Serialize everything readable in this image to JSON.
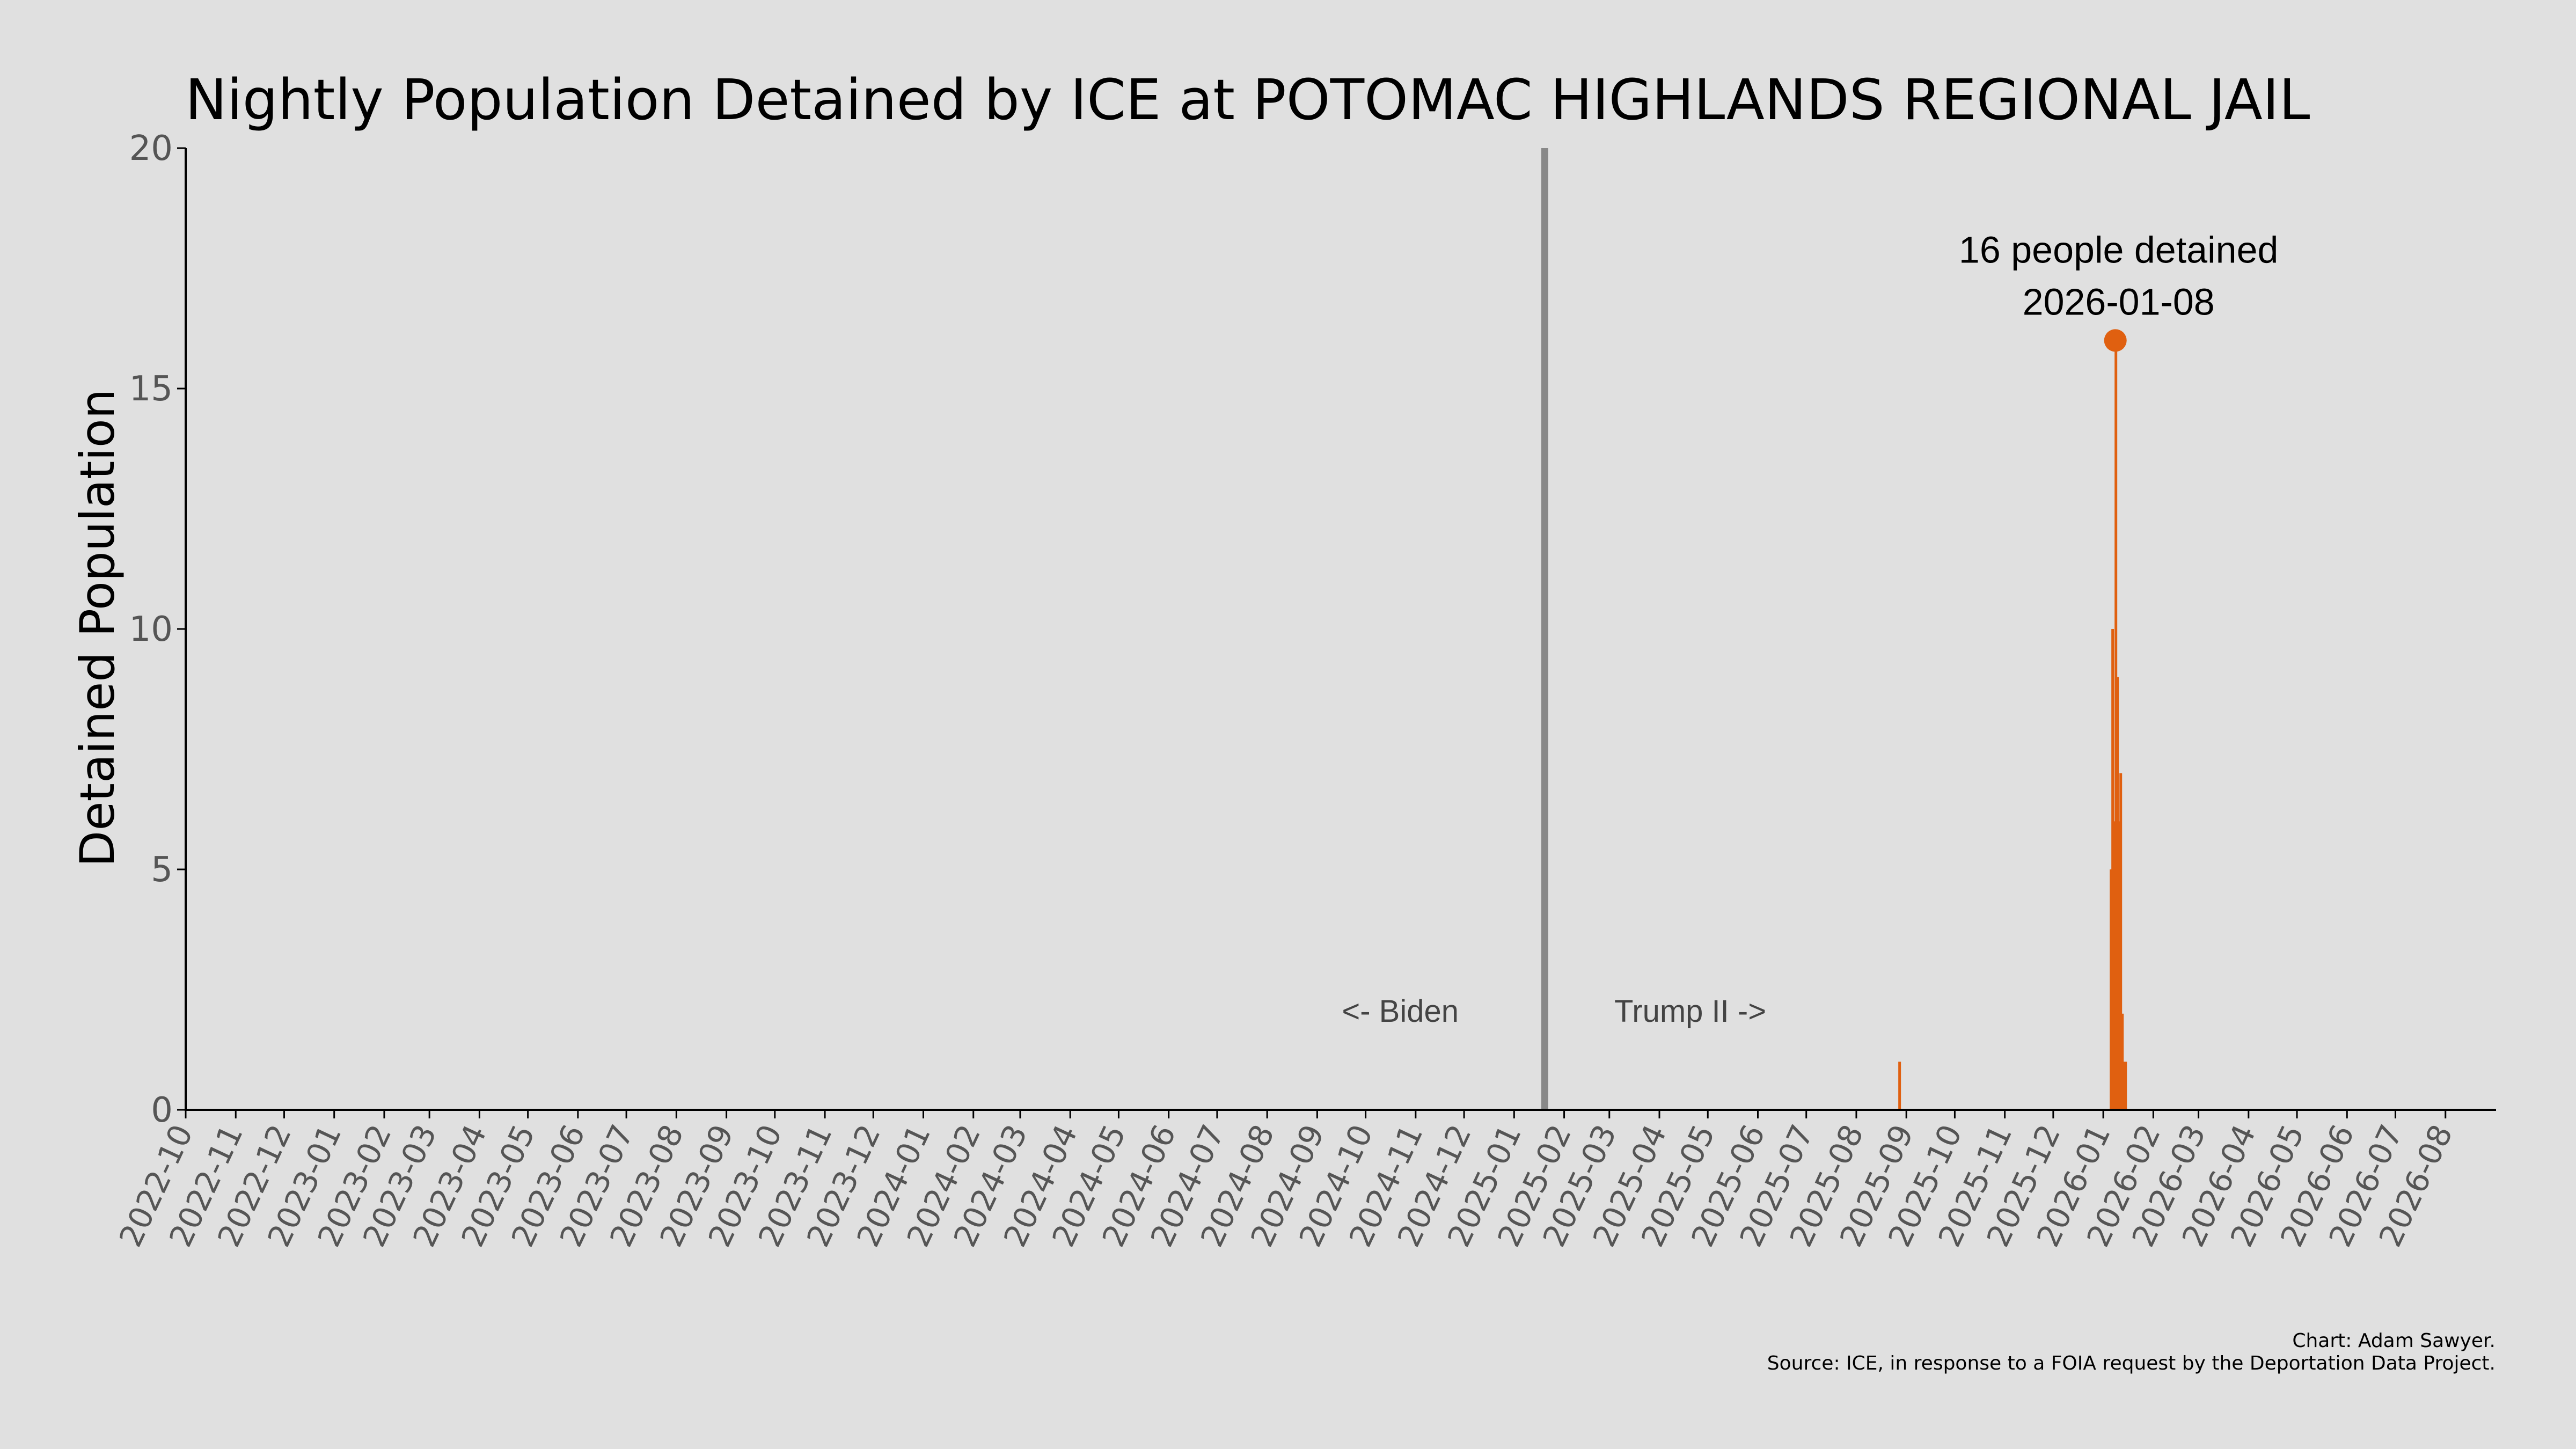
{
  "chart_data": {
    "type": "bar",
    "title": "Nightly Population Detained by ICE at POTOMAC HIGHLANDS REGIONAL JAIL",
    "xlabel": "",
    "ylabel": "Detained Population",
    "ylim": [
      0,
      20
    ],
    "yticks": [
      "0",
      "5",
      "10",
      "15",
      "20"
    ],
    "xlim": [
      "2022-10-01",
      "2026-08-31"
    ],
    "xticks": [
      "2022-10",
      "2022-11",
      "2022-12",
      "2023-01",
      "2023-02",
      "2023-03",
      "2023-04",
      "2023-05",
      "2023-06",
      "2023-07",
      "2023-08",
      "2023-09",
      "2023-10",
      "2023-11",
      "2023-12",
      "2024-01",
      "2024-02",
      "2024-03",
      "2024-04",
      "2024-05",
      "2024-06",
      "2024-07",
      "2024-08",
      "2024-09",
      "2024-10",
      "2024-11",
      "2024-12",
      "2025-01",
      "2025-02",
      "2025-03",
      "2025-04",
      "2025-05",
      "2025-06",
      "2025-07",
      "2025-08",
      "2025-09",
      "2025-10",
      "2025-11",
      "2025-12",
      "2026-01",
      "2026-02",
      "2026-03",
      "2026-04",
      "2026-05",
      "2026-06",
      "2026-07",
      "2026-08"
    ],
    "grid": false,
    "bar_color": "#e06010",
    "divider": {
      "date": "2025-01-20",
      "color": "#888888"
    },
    "annotations": {
      "left": "<- Biden",
      "right": "Trump II ->"
    },
    "peak": {
      "date": "2026-01-08",
      "value": 16,
      "line1": "16 people detained",
      "line2": "2026-01-08"
    },
    "points": [
      {
        "date": "2025-08-27",
        "value": 1
      },
      {
        "date": "2026-01-05",
        "value": 5
      },
      {
        "date": "2026-01-06",
        "value": 10
      },
      {
        "date": "2026-01-07",
        "value": 6
      },
      {
        "date": "2026-01-08",
        "value": 16
      },
      {
        "date": "2026-01-09",
        "value": 9
      },
      {
        "date": "2026-01-10",
        "value": 6
      },
      {
        "date": "2026-01-11",
        "value": 7
      },
      {
        "date": "2026-01-12",
        "value": 2
      },
      {
        "date": "2026-01-13",
        "value": 1
      },
      {
        "date": "2026-01-14",
        "value": 1
      }
    ]
  },
  "credits": {
    "line1": "Chart: Adam Sawyer.",
    "line2": "Source: ICE, in response to a FOIA request by the Deportation Data Project."
  }
}
